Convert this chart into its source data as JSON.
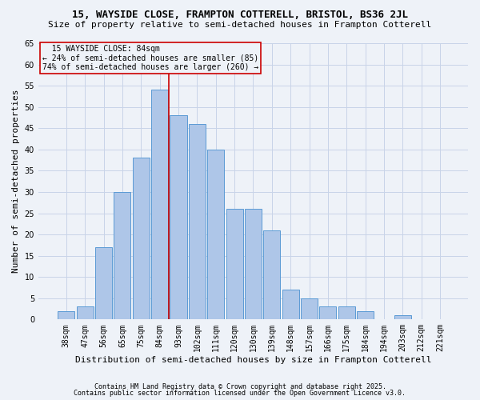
{
  "title1": "15, WAYSIDE CLOSE, FRAMPTON COTTERELL, BRISTOL, BS36 2JL",
  "title2": "Size of property relative to semi-detached houses in Frampton Cotterell",
  "xlabel": "Distribution of semi-detached houses by size in Frampton Cotterell",
  "ylabel": "Number of semi-detached properties",
  "footnote1": "Contains HM Land Registry data © Crown copyright and database right 2025.",
  "footnote2": "Contains public sector information licensed under the Open Government Licence v3.0.",
  "categories": [
    "38sqm",
    "47sqm",
    "56sqm",
    "65sqm",
    "75sqm",
    "84sqm",
    "93sqm",
    "102sqm",
    "111sqm",
    "120sqm",
    "130sqm",
    "139sqm",
    "148sqm",
    "157sqm",
    "166sqm",
    "175sqm",
    "184sqm",
    "194sqm",
    "203sqm",
    "212sqm",
    "221sqm"
  ],
  "values": [
    2,
    3,
    17,
    30,
    38,
    54,
    48,
    46,
    40,
    26,
    26,
    21,
    7,
    5,
    3,
    3,
    2,
    0,
    1,
    0,
    0
  ],
  "bar_color": "#aec6e8",
  "bar_edge_color": "#5b9bd5",
  "property_bar_index": 5,
  "annotation_line_label": "15 WAYSIDE CLOSE: 84sqm",
  "annotation_smaller": "← 24% of semi-detached houses are smaller (85)",
  "annotation_larger": "74% of semi-detached houses are larger (260) →",
  "annotation_box_color": "#cc0000",
  "ylim": [
    0,
    65
  ],
  "yticks": [
    0,
    5,
    10,
    15,
    20,
    25,
    30,
    35,
    40,
    45,
    50,
    55,
    60,
    65
  ],
  "grid_color": "#c8d4e8",
  "background_color": "#eef2f8",
  "title1_fontsize": 9,
  "title2_fontsize": 8,
  "ylabel_fontsize": 8,
  "xlabel_fontsize": 8,
  "tick_fontsize": 7,
  "annot_fontsize": 7,
  "footnote_fontsize": 6
}
